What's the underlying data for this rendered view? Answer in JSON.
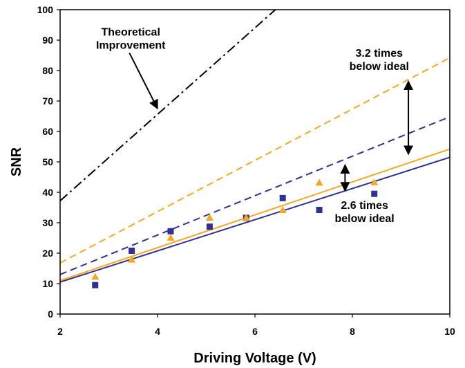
{
  "chart_data": {
    "type": "scatter",
    "xlabel": "Driving Voltage (V)",
    "ylabel": "SNR",
    "xlim": [
      2,
      10
    ],
    "ylim": [
      0,
      100
    ],
    "x_ticks": [
      "2",
      "4",
      "6",
      "8",
      "10"
    ],
    "y_ticks": [
      "0",
      "10",
      "20",
      "30",
      "40",
      "50",
      "60",
      "70",
      "80",
      "90",
      "100"
    ],
    "grid": false,
    "colors": {
      "blue": "#2e3192",
      "orange": "#f7a823",
      "black": "#000000"
    },
    "series": [
      {
        "marker": "square",
        "color": "#2e3192",
        "points": [
          [
            2.72,
            9.5
          ],
          [
            3.47,
            20.8
          ],
          [
            4.27,
            27.2
          ],
          [
            5.07,
            28.7
          ],
          [
            5.82,
            31.6
          ],
          [
            6.57,
            38.1
          ],
          [
            7.32,
            34.2
          ],
          [
            8.45,
            39.5
          ]
        ]
      },
      {
        "marker": "triangle",
        "color": "#f7a823",
        "points": [
          [
            2.72,
            12.2
          ],
          [
            3.47,
            17.8
          ],
          [
            4.27,
            25.0
          ],
          [
            5.07,
            31.6
          ],
          [
            5.82,
            31.6
          ],
          [
            6.57,
            34.1
          ],
          [
            7.32,
            43.1
          ],
          [
            8.45,
            43.2
          ]
        ]
      }
    ],
    "lines": [
      {
        "style": "solid",
        "color": "#2e3192",
        "x": [
          2,
          10
        ],
        "y": [
          10.5,
          51.5
        ]
      },
      {
        "style": "solid",
        "color": "#f7a823",
        "x": [
          2,
          10
        ],
        "y": [
          11.0,
          54.2
        ]
      },
      {
        "style": "dashed",
        "color": "#2e3192",
        "x": [
          2,
          10
        ],
        "y": [
          13.0,
          64.8
        ]
      },
      {
        "style": "dashed",
        "color": "#f7a823",
        "x": [
          2,
          10
        ],
        "y": [
          16.8,
          84.2
        ]
      },
      {
        "style": "dashdot",
        "color": "#000000",
        "x": [
          2,
          6.42
        ],
        "y": [
          37.2,
          100
        ]
      }
    ],
    "annotations": [
      {
        "lines": [
          "Theoretical",
          "Improvement"
        ],
        "at": [
          3.45,
          91.5
        ],
        "arrow_to": [
          4.0,
          67.5
        ]
      },
      {
        "lines": [
          "3.2 times",
          "below ideal"
        ],
        "at": [
          8.55,
          84.5
        ],
        "arrow_from": [
          9.15,
          76.5
        ],
        "arrow_to": [
          9.15,
          52.5
        ]
      },
      {
        "lines": [
          "2.6 times",
          "below ideal"
        ],
        "at": [
          8.25,
          34.5
        ],
        "arrow_from": [
          7.85,
          49.0
        ],
        "arrow_to": [
          7.85,
          40.5
        ]
      }
    ]
  }
}
